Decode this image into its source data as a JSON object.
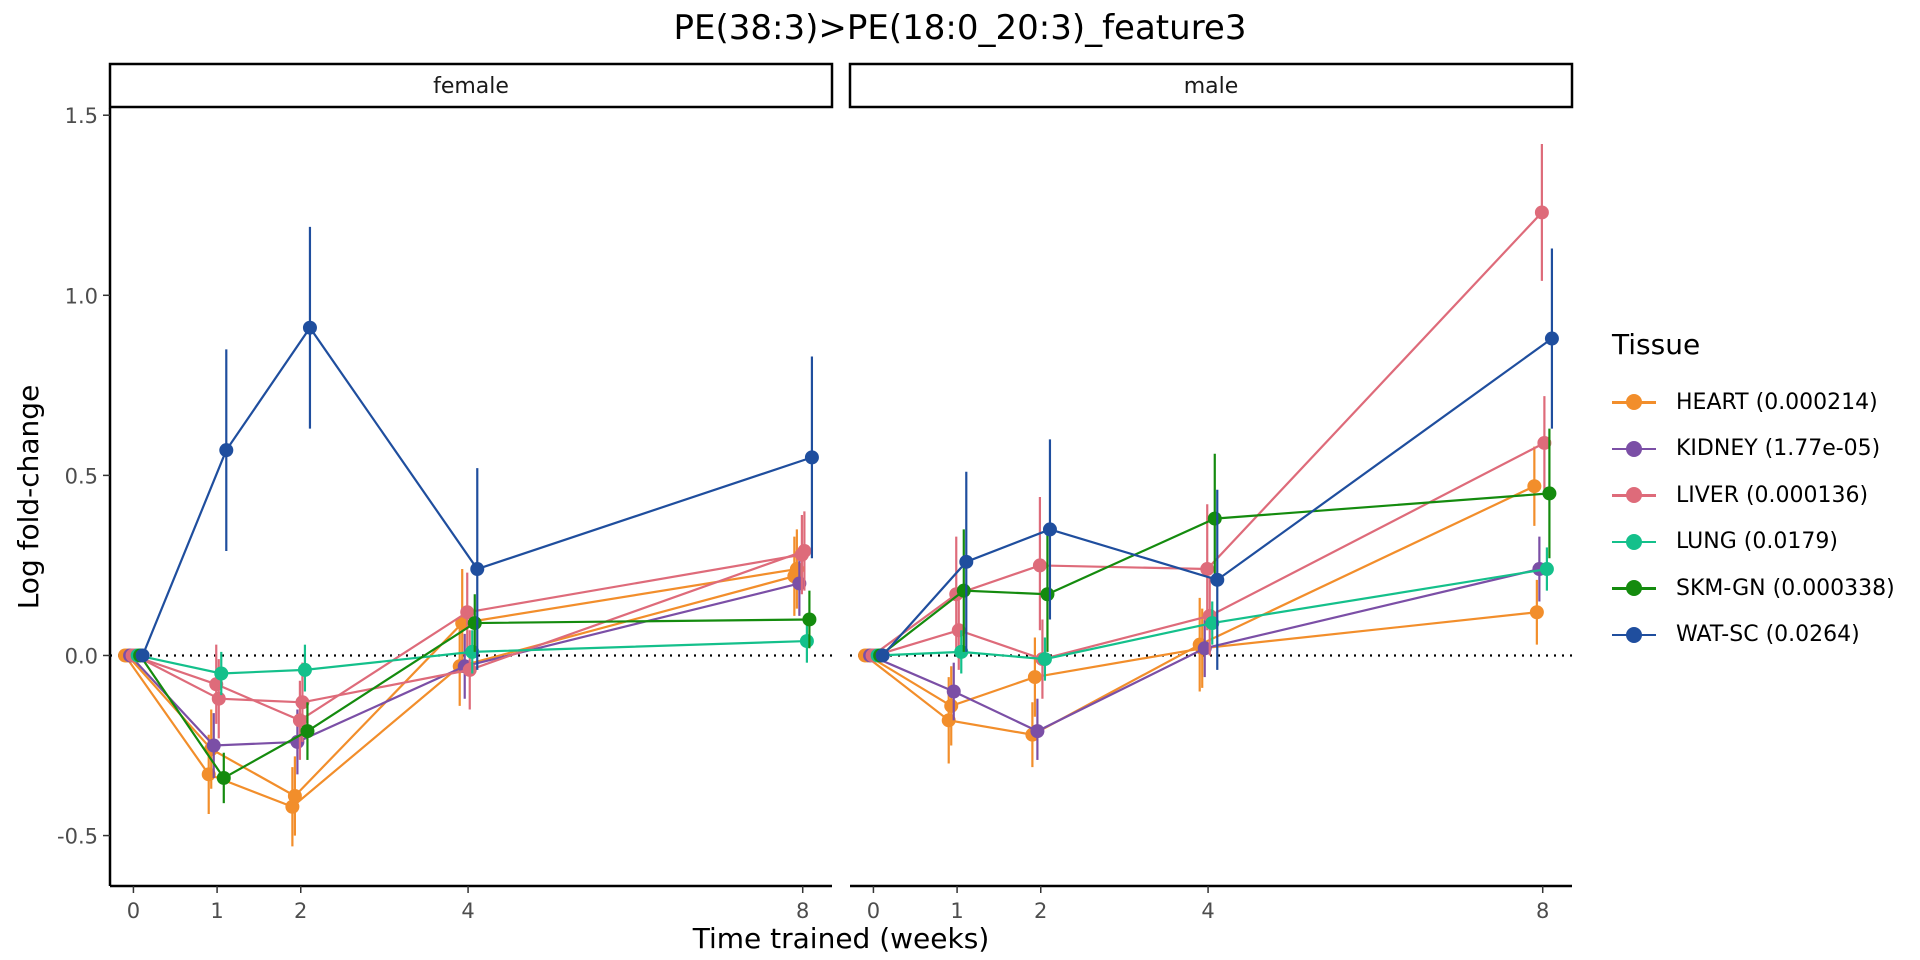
{
  "chart_data": {
    "type": "line",
    "title": "PE(38:3)>PE(18:0_20:3)_feature3",
    "xlabel": "Time trained (weeks)",
    "ylabel": "Log fold-change",
    "x_ticks": [
      0,
      1,
      2,
      4,
      8
    ],
    "x_tick_labels": [
      "0",
      "1",
      "2",
      "4",
      "8"
    ],
    "y_ticks": [
      -0.5,
      0.0,
      0.5,
      1.0,
      1.5
    ],
    "y_tick_labels": [
      "-0.5",
      "0.0",
      "0.5",
      "1.0",
      "1.5"
    ],
    "xlim": [
      -0.28,
      8.35
    ],
    "ylim": [
      -0.64,
      1.52
    ],
    "legend_title": "Tissue",
    "legend_position": "right",
    "reference_line": 0,
    "panels": [
      {
        "label": "female",
        "series": [
          {
            "name": "HEART (0.000214)",
            "color": "#F28E2B",
            "x": [
              0,
              1,
              2,
              4,
              8
            ],
            "y": [
              0.0,
              -0.33,
              -0.42,
              -0.03,
              0.22
            ],
            "lo": [
              0.0,
              -0.44,
              -0.53,
              -0.14,
              0.11
            ],
            "hi": [
              0.0,
              -0.22,
              -0.31,
              0.08,
              0.33
            ]
          },
          {
            "name": "HEART (0.000214)",
            "color": "#F28E2B",
            "x": [
              0,
              1,
              2,
              4,
              8
            ],
            "y": [
              0.0,
              -0.26,
              -0.39,
              0.09,
              0.24
            ],
            "lo": [
              0.0,
              -0.37,
              -0.5,
              -0.02,
              0.13
            ],
            "hi": [
              0.0,
              -0.15,
              -0.28,
              0.24,
              0.35
            ]
          },
          {
            "name": "KIDNEY (1.77e-05)",
            "color": "#7B4FA6",
            "x": [
              0,
              1,
              2,
              4,
              8
            ],
            "y": [
              0.0,
              -0.25,
              -0.24,
              -0.03,
              0.2
            ],
            "lo": [
              0.0,
              -0.34,
              -0.33,
              -0.12,
              0.11
            ],
            "hi": [
              0.0,
              -0.16,
              -0.15,
              0.06,
              0.29
            ]
          },
          {
            "name": "LIVER (0.000136)",
            "color": "#DE6B7A",
            "x": [
              0,
              1,
              2,
              4,
              8
            ],
            "y": [
              0.0,
              -0.08,
              -0.18,
              0.12,
              0.28
            ],
            "lo": [
              0.0,
              -0.19,
              -0.29,
              0.01,
              0.17
            ],
            "hi": [
              0.0,
              0.03,
              -0.07,
              0.23,
              0.39
            ]
          },
          {
            "name": "LIVER (0.000136)",
            "color": "#DE6B7A",
            "x": [
              0,
              1,
              2,
              4,
              8
            ],
            "y": [
              0.0,
              -0.12,
              -0.13,
              -0.04,
              0.29
            ],
            "lo": [
              0.0,
              -0.23,
              -0.24,
              -0.15,
              0.18
            ],
            "hi": [
              0.0,
              -0.01,
              -0.02,
              0.07,
              0.4
            ]
          },
          {
            "name": "LUNG (0.0179)",
            "color": "#14C08B",
            "x": [
              0,
              1,
              2,
              4,
              8
            ],
            "y": [
              0.0,
              -0.05,
              -0.04,
              0.01,
              0.04
            ],
            "lo": [
              0.0,
              -0.11,
              -0.1,
              -0.05,
              -0.02
            ],
            "hi": [
              0.0,
              0.01,
              0.03,
              0.07,
              0.1
            ]
          },
          {
            "name": "SKM-GN (0.000338)",
            "color": "#148B0E",
            "x": [
              0,
              1,
              2,
              4,
              8
            ],
            "y": [
              0.0,
              -0.34,
              -0.21,
              0.09,
              0.1
            ],
            "lo": [
              0.0,
              -0.41,
              -0.29,
              0.01,
              0.02
            ],
            "hi": [
              0.0,
              -0.27,
              -0.13,
              0.17,
              0.18
            ]
          },
          {
            "name": "WAT-SC (0.0264)",
            "color": "#1F4E9E",
            "x": [
              0,
              1,
              2,
              4,
              8
            ],
            "y": [
              0.0,
              0.57,
              0.91,
              0.24,
              0.55
            ],
            "lo": [
              0.0,
              0.29,
              0.63,
              -0.04,
              0.27
            ],
            "hi": [
              0.0,
              0.85,
              1.19,
              0.52,
              0.83
            ]
          }
        ]
      },
      {
        "label": "male",
        "series": [
          {
            "name": "HEART (0.000214)",
            "color": "#F28E2B",
            "x": [
              0,
              1,
              2,
              4,
              8
            ],
            "y": [
              0.0,
              -0.18,
              -0.22,
              0.03,
              0.47
            ],
            "lo": [
              0.0,
              -0.3,
              -0.31,
              -0.1,
              0.36
            ],
            "hi": [
              0.0,
              -0.06,
              -0.13,
              0.16,
              0.58
            ]
          },
          {
            "name": "HEART (0.000214)",
            "color": "#F28E2B",
            "x": [
              0,
              1,
              2,
              4,
              8
            ],
            "y": [
              0.0,
              -0.14,
              -0.06,
              0.02,
              0.12
            ],
            "lo": [
              0.0,
              -0.25,
              -0.17,
              -0.09,
              0.03
            ],
            "hi": [
              0.0,
              -0.03,
              0.05,
              0.13,
              0.21
            ]
          },
          {
            "name": "KIDNEY (1.77e-05)",
            "color": "#7B4FA6",
            "x": [
              0,
              1,
              2,
              4,
              8
            ],
            "y": [
              0.0,
              -0.1,
              -0.21,
              0.02,
              0.24
            ],
            "lo": [
              0.0,
              -0.18,
              -0.29,
              -0.06,
              0.15
            ],
            "hi": [
              0.0,
              -0.02,
              -0.12,
              0.1,
              0.33
            ]
          },
          {
            "name": "LIVER (0.000136)",
            "color": "#DE6B7A",
            "x": [
              0,
              1,
              2,
              4,
              8
            ],
            "y": [
              0.0,
              0.17,
              0.25,
              0.24,
              1.23
            ],
            "lo": [
              0.0,
              0.02,
              0.07,
              0.07,
              1.04
            ],
            "hi": [
              0.0,
              0.33,
              0.44,
              0.42,
              1.42
            ]
          },
          {
            "name": "LIVER (0.000136)",
            "color": "#DE6B7A",
            "x": [
              0,
              1,
              2,
              4,
              8
            ],
            "y": [
              0.0,
              0.07,
              -0.01,
              0.11,
              0.59
            ],
            "lo": [
              0.0,
              -0.04,
              -0.12,
              0.0,
              0.46
            ],
            "hi": [
              0.0,
              0.18,
              0.1,
              0.22,
              0.72
            ]
          },
          {
            "name": "LUNG (0.0179)",
            "color": "#14C08B",
            "x": [
              0,
              1,
              2,
              4,
              8
            ],
            "y": [
              0.0,
              0.01,
              -0.01,
              0.09,
              0.24
            ],
            "lo": [
              0.0,
              -0.05,
              -0.07,
              0.03,
              0.18
            ],
            "hi": [
              0.0,
              0.07,
              0.05,
              0.15,
              0.3
            ]
          },
          {
            "name": "SKM-GN (0.000338)",
            "color": "#148B0E",
            "x": [
              0,
              1,
              2,
              4,
              8
            ],
            "y": [
              0.0,
              0.18,
              0.17,
              0.38,
              0.45
            ],
            "lo": [
              0.0,
              0.01,
              0.01,
              0.2,
              0.27
            ],
            "hi": [
              0.0,
              0.35,
              0.34,
              0.56,
              0.63
            ]
          },
          {
            "name": "WAT-SC (0.0264)",
            "color": "#1F4E9E",
            "x": [
              0,
              1,
              2,
              4,
              8
            ],
            "y": [
              0.0,
              0.26,
              0.35,
              0.21,
              0.88
            ],
            "lo": [
              0.0,
              0.01,
              0.1,
              -0.04,
              0.63
            ],
            "hi": [
              0.0,
              0.51,
              0.6,
              0.46,
              1.13
            ]
          }
        ]
      }
    ]
  },
  "legend_items": [
    {
      "label": "HEART (0.000214)",
      "color": "#F28E2B"
    },
    {
      "label": "KIDNEY (1.77e-05)",
      "color": "#7B4FA6"
    },
    {
      "label": "LIVER (0.000136)",
      "color": "#DE6B7A"
    },
    {
      "label": "LUNG (0.0179)",
      "color": "#14C08B"
    },
    {
      "label": "SKM-GN (0.000338)",
      "color": "#148B0E"
    },
    {
      "label": "WAT-SC (0.0264)",
      "color": "#1F4E9E"
    }
  ]
}
